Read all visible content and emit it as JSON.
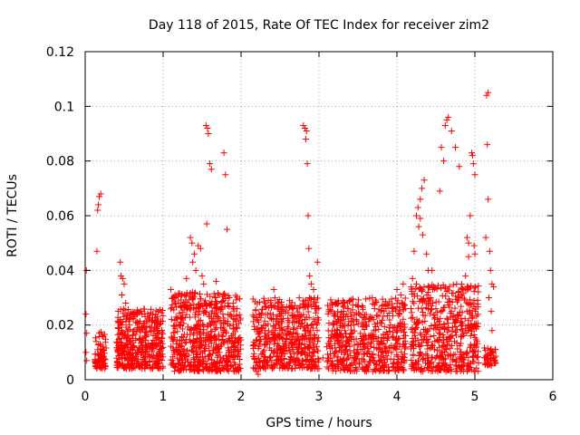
{
  "chart_data": {
    "type": "scatter",
    "title": "Day 118 of 2015, Rate Of TEC Index for receiver zim2",
    "xlabel": "GPS time / hours",
    "ylabel": "ROTI / TECUs",
    "xlim": [
      0,
      6
    ],
    "ylim": [
      0,
      0.12
    ],
    "xticks": [
      0,
      1,
      2,
      3,
      4,
      5,
      6
    ],
    "yticks": [
      0,
      0.02,
      0.04,
      0.06,
      0.08,
      0.1,
      0.12
    ],
    "xtick_labels": [
      "0",
      "1",
      "2",
      "3",
      "4",
      "5",
      "6"
    ],
    "ytick_labels": [
      "0",
      "0.02",
      "0.04",
      "0.06",
      "0.08",
      "0.1",
      "0.12"
    ],
    "grid": true,
    "marker": "+",
    "marker_color": "#ff0000",
    "series": [
      {
        "name": "ROTI",
        "points": [
          [
            0.01,
            0.024
          ],
          [
            0.02,
            0.017
          ],
          [
            0.01,
            0.01
          ],
          [
            0.02,
            0.007
          ],
          [
            0.015,
            0.04
          ],
          [
            0.15,
            0.047
          ],
          [
            0.16,
            0.062
          ],
          [
            0.17,
            0.064
          ],
          [
            0.18,
            0.067
          ],
          [
            0.2,
            0.068
          ],
          [
            0.14,
            0.014
          ],
          [
            0.16,
            0.011
          ],
          [
            0.17,
            0.009
          ],
          [
            0.19,
            0.013
          ],
          [
            0.2,
            0.008
          ],
          [
            0.22,
            0.016
          ],
          [
            0.23,
            0.012
          ],
          [
            0.24,
            0.006
          ],
          [
            0.18,
            0.017
          ],
          [
            0.21,
            0.004
          ],
          [
            0.45,
            0.043
          ],
          [
            0.46,
            0.038
          ],
          [
            0.48,
            0.037
          ],
          [
            0.5,
            0.035
          ],
          [
            0.47,
            0.031
          ],
          [
            0.52,
            0.028
          ],
          [
            0.5,
            0.023
          ],
          [
            0.45,
            0.022
          ],
          [
            1.55,
            0.093
          ],
          [
            1.57,
            0.092
          ],
          [
            1.58,
            0.09
          ],
          [
            1.6,
            0.079
          ],
          [
            1.62,
            0.077
          ],
          [
            1.78,
            0.083
          ],
          [
            1.8,
            0.075
          ],
          [
            1.56,
            0.057
          ],
          [
            1.82,
            0.055
          ],
          [
            1.35,
            0.052
          ],
          [
            1.37,
            0.05
          ],
          [
            1.4,
            0.046
          ],
          [
            1.45,
            0.049
          ],
          [
            1.48,
            0.048
          ],
          [
            1.38,
            0.043
          ],
          [
            1.42,
            0.04
          ],
          [
            1.5,
            0.038
          ],
          [
            1.3,
            0.037
          ],
          [
            1.52,
            0.035
          ],
          [
            1.68,
            0.036
          ],
          [
            1.72,
            0.031
          ],
          [
            1.85,
            0.03
          ],
          [
            1.9,
            0.028
          ],
          [
            1.95,
            0.026
          ],
          [
            1.1,
            0.033
          ],
          [
            1.15,
            0.03
          ],
          [
            1.2,
            0.028
          ],
          [
            2.8,
            0.093
          ],
          [
            2.82,
            0.092
          ],
          [
            2.84,
            0.091
          ],
          [
            2.83,
            0.088
          ],
          [
            2.85,
            0.079
          ],
          [
            2.86,
            0.06
          ],
          [
            2.87,
            0.048
          ],
          [
            2.88,
            0.038
          ],
          [
            2.9,
            0.035
          ],
          [
            2.93,
            0.033
          ],
          [
            2.98,
            0.043
          ],
          [
            2.95,
            0.026
          ],
          [
            2.97,
            0.02
          ],
          [
            2.2,
            0.003
          ],
          [
            2.22,
            0.002
          ],
          [
            2.35,
            0.029
          ],
          [
            2.42,
            0.033
          ],
          [
            2.5,
            0.025
          ],
          [
            4.25,
            0.06
          ],
          [
            4.27,
            0.063
          ],
          [
            4.3,
            0.066
          ],
          [
            4.32,
            0.07
          ],
          [
            4.35,
            0.073
          ],
          [
            4.3,
            0.059
          ],
          [
            4.28,
            0.056
          ],
          [
            4.33,
            0.053
          ],
          [
            4.22,
            0.047
          ],
          [
            4.38,
            0.046
          ],
          [
            4.4,
            0.04
          ],
          [
            4.45,
            0.04
          ],
          [
            4.2,
            0.037
          ],
          [
            4.25,
            0.035
          ],
          [
            4.57,
            0.085
          ],
          [
            4.6,
            0.08
          ],
          [
            4.62,
            0.093
          ],
          [
            4.64,
            0.095
          ],
          [
            4.66,
            0.096
          ],
          [
            4.55,
            0.069
          ],
          [
            4.7,
            0.091
          ],
          [
            4.75,
            0.085
          ],
          [
            4.8,
            0.078
          ],
          [
            4.9,
            0.052
          ],
          [
            4.92,
            0.05
          ],
          [
            4.94,
            0.06
          ],
          [
            4.96,
            0.083
          ],
          [
            4.97,
            0.082
          ],
          [
            4.98,
            0.079
          ],
          [
            5.0,
            0.075
          ],
          [
            4.99,
            0.049
          ],
          [
            5.0,
            0.046
          ],
          [
            5.15,
            0.104
          ],
          [
            5.17,
            0.105
          ],
          [
            5.16,
            0.086
          ],
          [
            5.17,
            0.066
          ],
          [
            5.14,
            0.052
          ],
          [
            5.19,
            0.047
          ],
          [
            5.2,
            0.04
          ],
          [
            5.22,
            0.035
          ],
          [
            5.24,
            0.034
          ],
          [
            5.18,
            0.03
          ],
          [
            5.21,
            0.025
          ],
          [
            5.22,
            0.018
          ],
          [
            5.2,
            0.011
          ],
          [
            5.24,
            0.008
          ],
          [
            5.25,
            0.006
          ],
          [
            4.4,
            0.032
          ],
          [
            4.43,
            0.03
          ],
          [
            4.46,
            0.028
          ],
          [
            4.5,
            0.026
          ],
          [
            4.8,
            0.03
          ],
          [
            4.85,
            0.033
          ],
          [
            4.88,
            0.038
          ],
          [
            4.92,
            0.045
          ],
          [
            4.7,
            0.025
          ],
          [
            4.65,
            0.022
          ],
          [
            3.05,
            0.008
          ],
          [
            3.1,
            0.012
          ],
          [
            3.2,
            0.018
          ],
          [
            3.25,
            0.028
          ],
          [
            3.35,
            0.024
          ],
          [
            3.45,
            0.02
          ],
          [
            3.6,
            0.016
          ],
          [
            3.7,
            0.022
          ],
          [
            3.8,
            0.014
          ],
          [
            3.9,
            0.019
          ],
          [
            3.95,
            0.025
          ],
          [
            4.0,
            0.033
          ],
          [
            4.05,
            0.031
          ],
          [
            4.08,
            0.035
          ],
          [
            3.5,
            0.01
          ],
          [
            3.3,
            0.006
          ]
        ]
      }
    ],
    "dense_clusters": [
      {
        "x_range": [
          0.12,
          0.27
        ],
        "y_range": [
          0.004,
          0.018
        ],
        "count": 60
      },
      {
        "x_range": [
          0.4,
          1.0
        ],
        "y_range": [
          0.004,
          0.026
        ],
        "count": 420
      },
      {
        "x_range": [
          1.1,
          2.0
        ],
        "y_range": [
          0.003,
          0.032
        ],
        "count": 620
      },
      {
        "x_range": [
          2.15,
          3.0
        ],
        "y_range": [
          0.004,
          0.03
        ],
        "count": 520
      },
      {
        "x_range": [
          3.1,
          4.12
        ],
        "y_range": [
          0.003,
          0.03
        ],
        "count": 560
      },
      {
        "x_range": [
          4.18,
          5.05
        ],
        "y_range": [
          0.003,
          0.035
        ],
        "count": 520
      },
      {
        "x_range": [
          5.12,
          5.27
        ],
        "y_range": [
          0.005,
          0.012
        ],
        "count": 40
      }
    ]
  }
}
